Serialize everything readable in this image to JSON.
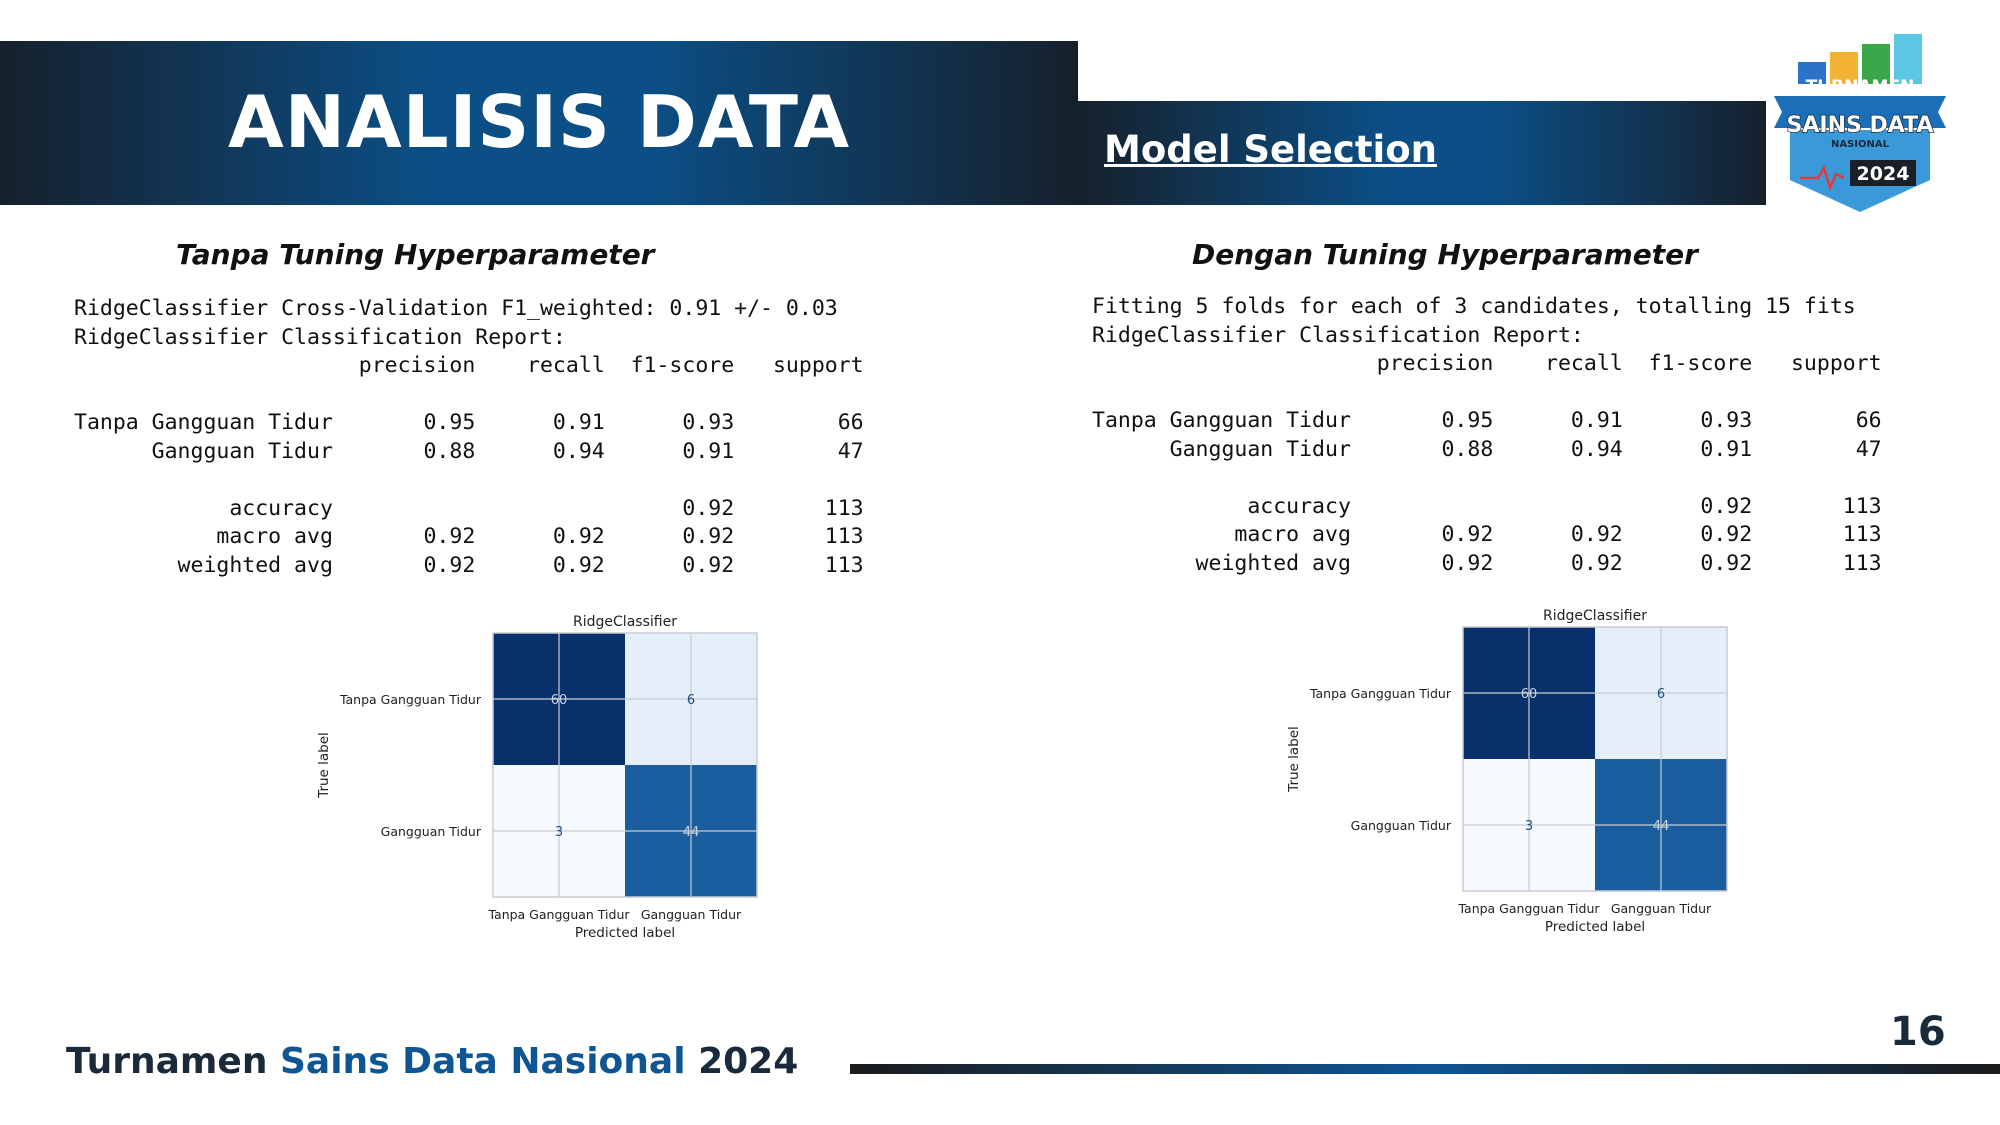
{
  "header": {
    "title": "ANALISIS DATA",
    "subtitle": "Model Selection"
  },
  "logo": {
    "line1": "TURNAMEN",
    "line2": "SAINS DATA",
    "line3": "NASIONAL",
    "year": "2024"
  },
  "left": {
    "title": "Tanpa Tuning Hyperparameter",
    "report": "RidgeClassifier Cross-Validation F1_weighted: 0.91 +/- 0.03\nRidgeClassifier Classification Report:\n                      precision    recall  f1-score   support\n\nTanpa Gangguan Tidur       0.95      0.91      0.93        66\n      Gangguan Tidur       0.88      0.94      0.91        47\n\n            accuracy                           0.92       113\n           macro avg       0.92      0.92      0.92       113\n        weighted avg       0.92      0.92      0.92       113"
  },
  "right": {
    "title": "Dengan Tuning Hyperparameter",
    "report": "Fitting 5 folds for each of 3 candidates, totalling 15 fits\nRidgeClassifier Classification Report:\n                      precision    recall  f1-score   support\n\nTanpa Gangguan Tidur       0.95      0.91      0.93        66\n      Gangguan Tidur       0.88      0.94      0.91        47\n\n            accuracy                           0.92       113\n           macro avg       0.92      0.92      0.92       113\n        weighted avg       0.92      0.92      0.92       113"
  },
  "chart_data": [
    {
      "type": "heatmap",
      "title": "RidgeClassifier",
      "xlabel": "Predicted label",
      "ylabel": "True label",
      "x_categories": [
        "Tanpa Gangguan Tidur",
        "Gangguan Tidur"
      ],
      "y_categories": [
        "Tanpa Gangguan Tidur",
        "Gangguan Tidur"
      ],
      "values": [
        [
          60,
          6
        ],
        [
          3,
          44
        ]
      ],
      "colormap": "Blues"
    },
    {
      "type": "heatmap",
      "title": "RidgeClassifier",
      "xlabel": "Predicted label",
      "ylabel": "True label",
      "x_categories": [
        "Tanpa Gangguan Tidur",
        "Gangguan Tidur"
      ],
      "y_categories": [
        "Tanpa Gangguan Tidur",
        "Gangguan Tidur"
      ],
      "values": [
        [
          60,
          6
        ],
        [
          3,
          44
        ]
      ],
      "colormap": "Blues"
    }
  ],
  "footer": {
    "part1": "Turnamen ",
    "part2": "Sains Data Nasional",
    "part3": " 2024",
    "page_number": "16",
    "color_dark": "#1a2a3a",
    "color_blue": "#0e5594"
  }
}
